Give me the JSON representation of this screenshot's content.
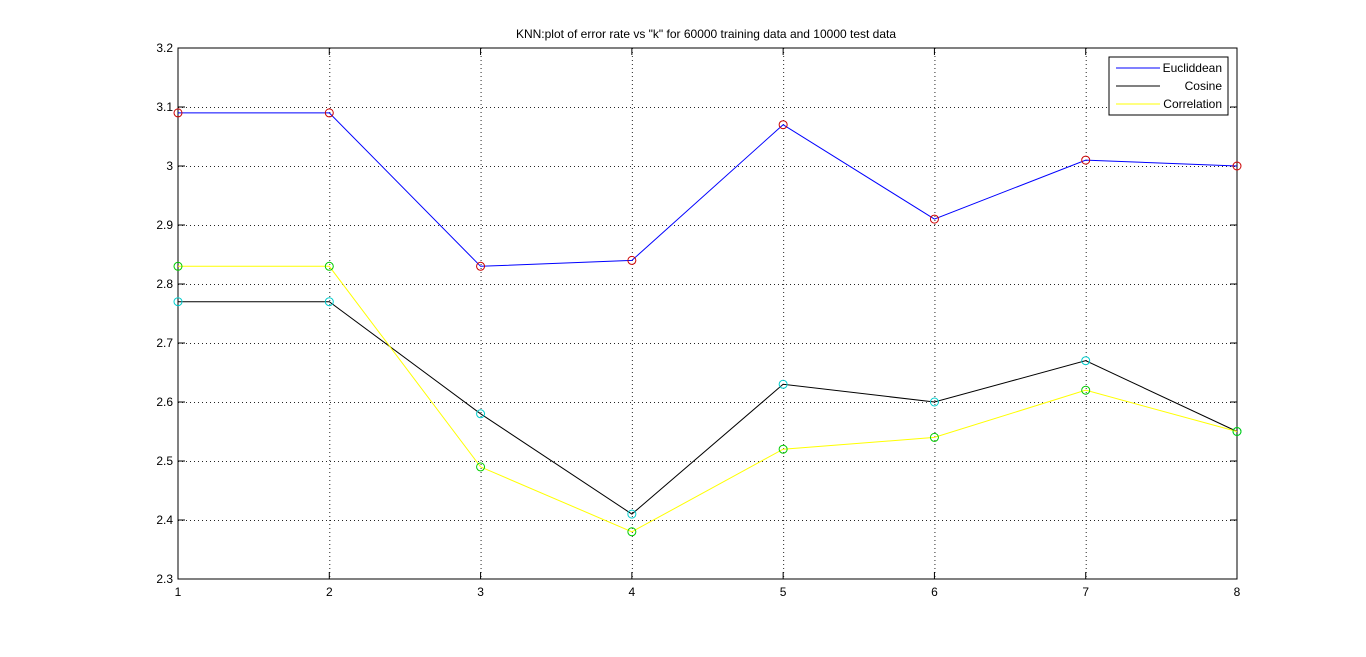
{
  "chart_data": {
    "type": "line",
    "title": "KNN:plot of error rate vs \"k\" for 60000 training data and 10000 test data",
    "xlabel": "",
    "ylabel": "",
    "xlim": [
      1,
      8
    ],
    "ylim": [
      2.3,
      3.2
    ],
    "x": [
      1,
      2,
      3,
      4,
      5,
      6,
      7,
      8
    ],
    "x_tick_labels": [
      "1",
      "2",
      "3",
      "4",
      "5",
      "6",
      "7",
      "8"
    ],
    "y_ticks": [
      2.3,
      2.4,
      2.5,
      2.6,
      2.7,
      2.8,
      2.9,
      3.0,
      3.1,
      3.2
    ],
    "y_tick_labels": [
      "2.3",
      "2.4",
      "2.5",
      "2.6",
      "2.7",
      "2.8",
      "2.9",
      "3",
      "3.1",
      "3.2"
    ],
    "grid": true,
    "legend_position": "top-right",
    "series": [
      {
        "name": "Eucliddean",
        "values": [
          3.09,
          3.09,
          2.83,
          2.84,
          3.07,
          2.91,
          3.01,
          3.0
        ],
        "line_color": "#0000ff",
        "marker": "circle",
        "marker_color": "#cc0000"
      },
      {
        "name": "Cosine",
        "values": [
          2.77,
          2.77,
          2.58,
          2.41,
          2.63,
          2.6,
          2.67,
          2.55
        ],
        "line_color": "#000000",
        "marker": "circle",
        "marker_color": "#00cccc"
      },
      {
        "name": "Correlation",
        "values": [
          2.83,
          2.83,
          2.49,
          2.38,
          2.52,
          2.54,
          2.62,
          2.55
        ],
        "line_color": "#ffff00",
        "marker": "circle",
        "marker_color": "#00cc00"
      }
    ]
  }
}
